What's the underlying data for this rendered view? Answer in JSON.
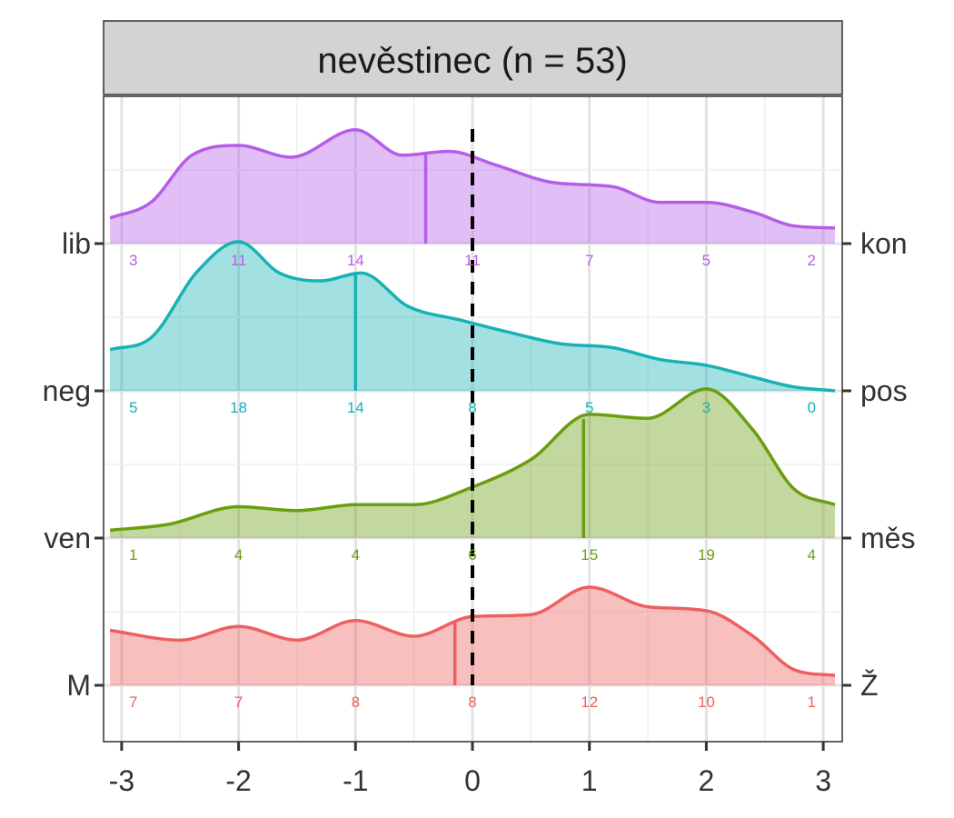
{
  "chart_data": {
    "type": "area",
    "title": "nevěstinec (n = 53)",
    "xlim": [
      -3.1,
      3.1
    ],
    "x_ticks": [
      -3,
      -2,
      -1,
      0,
      1,
      2,
      3
    ],
    "x_tick_labels": [
      "-3",
      "-2",
      "-1",
      "0",
      "1",
      "2",
      "3"
    ],
    "reference_line_x": 0,
    "grid": true,
    "series": [
      {
        "left_label": "lib",
        "right_label": "kon",
        "color": "#b65de8",
        "counts": [
          "3",
          "11",
          "14",
          "11",
          "7",
          "5",
          "2"
        ],
        "mean": -0.4,
        "density": [
          [
            -3.1,
            0.13
          ],
          [
            -2.75,
            0.21
          ],
          [
            -2.4,
            0.45
          ],
          [
            -2.0,
            0.5
          ],
          [
            -1.55,
            0.44
          ],
          [
            -1.0,
            0.58
          ],
          [
            -0.6,
            0.45
          ],
          [
            -0.2,
            0.47
          ],
          [
            0.2,
            0.4
          ],
          [
            0.7,
            0.31
          ],
          [
            1.2,
            0.29
          ],
          [
            1.6,
            0.21
          ],
          [
            2.0,
            0.21
          ],
          [
            2.4,
            0.16
          ],
          [
            2.75,
            0.09
          ],
          [
            3.1,
            0.08
          ]
        ]
      },
      {
        "left_label": "neg",
        "right_label": "pos",
        "color": "#18b2b5",
        "counts": [
          "5",
          "18",
          "14",
          "8",
          "5",
          "3",
          "0"
        ],
        "mean": -1.0,
        "density": [
          [
            -3.1,
            0.21
          ],
          [
            -2.75,
            0.27
          ],
          [
            -2.35,
            0.61
          ],
          [
            -2.0,
            0.76
          ],
          [
            -1.65,
            0.6
          ],
          [
            -1.3,
            0.56
          ],
          [
            -0.95,
            0.6
          ],
          [
            -0.55,
            0.43
          ],
          [
            -0.1,
            0.36
          ],
          [
            0.3,
            0.3
          ],
          [
            0.75,
            0.24
          ],
          [
            1.2,
            0.22
          ],
          [
            1.6,
            0.16
          ],
          [
            2.0,
            0.13
          ],
          [
            2.4,
            0.07
          ],
          [
            2.75,
            0.02
          ],
          [
            3.1,
            0.0
          ]
        ]
      },
      {
        "left_label": "ven",
        "right_label": "měs",
        "color": "#6a9e10",
        "counts": [
          "1",
          "4",
          "4",
          "6",
          "15",
          "19",
          "4"
        ],
        "mean": 0.95,
        "density": [
          [
            -3.1,
            0.04
          ],
          [
            -2.6,
            0.07
          ],
          [
            -2.0,
            0.16
          ],
          [
            -1.5,
            0.14
          ],
          [
            -1.0,
            0.17
          ],
          [
            -0.5,
            0.17
          ],
          [
            0.0,
            0.26
          ],
          [
            0.5,
            0.4
          ],
          [
            1.0,
            0.63
          ],
          [
            1.5,
            0.61
          ],
          [
            2.0,
            0.76
          ],
          [
            2.4,
            0.55
          ],
          [
            2.75,
            0.25
          ],
          [
            3.1,
            0.17
          ]
        ]
      },
      {
        "left_label": "M",
        "right_label": "Ž",
        "color": "#ee5f5f",
        "counts": [
          "7",
          "7",
          "8",
          "8",
          "12",
          "10",
          "1"
        ],
        "mean": -0.15,
        "density": [
          [
            -3.1,
            0.28
          ],
          [
            -2.5,
            0.23
          ],
          [
            -2.0,
            0.3
          ],
          [
            -1.5,
            0.23
          ],
          [
            -1.0,
            0.33
          ],
          [
            -0.5,
            0.25
          ],
          [
            0.0,
            0.35
          ],
          [
            0.5,
            0.36
          ],
          [
            1.0,
            0.5
          ],
          [
            1.5,
            0.4
          ],
          [
            2.0,
            0.38
          ],
          [
            2.4,
            0.25
          ],
          [
            2.75,
            0.08
          ],
          [
            3.1,
            0.05
          ]
        ]
      }
    ]
  }
}
